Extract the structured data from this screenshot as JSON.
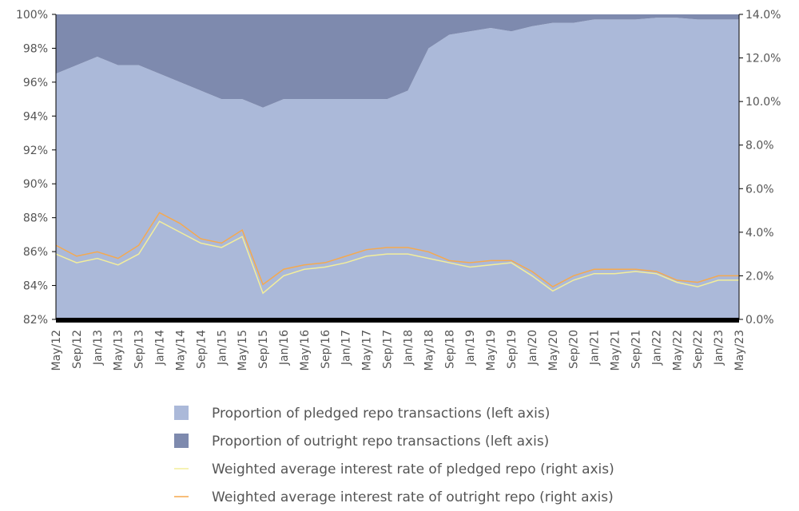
{
  "chart_data": {
    "type": "stacked-area-line",
    "categories": [
      "May/12",
      "Sep/12",
      "Jan/13",
      "May/13",
      "Sep/13",
      "Jan/14",
      "May/14",
      "Sep/14",
      "Jan/15",
      "May/15",
      "Sep/15",
      "Jan/16",
      "May/16",
      "Sep/16",
      "Jan/17",
      "May/17",
      "Sep/17",
      "Jan/18",
      "May/18",
      "Sep/18",
      "Jan/19",
      "May/19",
      "Sep/19",
      "Jan/20",
      "May/20",
      "Sep/20",
      "Jan/21",
      "May/21",
      "Sep/21",
      "Jan/22",
      "May/22",
      "Sep/22",
      "Jan/23",
      "May/23"
    ],
    "series": [
      {
        "name": "Proportion of pledged repo transactions (left axis)",
        "color": "#abb9d9",
        "kind": "area",
        "values": [
          96.5,
          97,
          97.5,
          97,
          97,
          96.5,
          96,
          95.5,
          95,
          95,
          94.5,
          95,
          95,
          95,
          95,
          95,
          95,
          95.5,
          98,
          98.8,
          99,
          99.2,
          99,
          99.3,
          99.5,
          99.5,
          99.7,
          99.7,
          99.7,
          99.8,
          99.8,
          99.7,
          99.7,
          99.7
        ]
      },
      {
        "name": "Proportion of outright repo transactions (left axis)",
        "color": "#7e8aae",
        "kind": "area",
        "values": [
          3.5,
          3,
          2.5,
          3,
          3,
          3.5,
          4,
          4.5,
          5,
          5,
          5.5,
          5,
          5,
          5,
          5,
          5,
          5,
          4.5,
          2,
          1.2,
          1,
          0.8,
          1,
          0.7,
          0.5,
          0.5,
          0.3,
          0.3,
          0.3,
          0.2,
          0.2,
          0.3,
          0.3,
          0.3
        ]
      },
      {
        "name": "Weighted average interest rate of pledged repo (right axis)",
        "color": "#f3ee9c",
        "kind": "line",
        "axis": "y2",
        "values": [
          3.0,
          2.6,
          2.8,
          2.5,
          3.0,
          4.5,
          4.0,
          3.5,
          3.3,
          3.8,
          1.2,
          2.0,
          2.3,
          2.4,
          2.6,
          2.9,
          3.0,
          3.0,
          2.8,
          2.6,
          2.4,
          2.5,
          2.6,
          2.0,
          1.3,
          1.8,
          2.1,
          2.1,
          2.2,
          2.1,
          1.7,
          1.5,
          1.8,
          1.8
        ]
      },
      {
        "name": "Weighted average interest rate of outright repo (right axis)",
        "color": "#f5a94f",
        "kind": "line",
        "axis": "y2",
        "values": [
          3.4,
          2.9,
          3.1,
          2.8,
          3.4,
          4.9,
          4.4,
          3.7,
          3.5,
          4.1,
          1.6,
          2.3,
          2.5,
          2.6,
          2.9,
          3.2,
          3.3,
          3.3,
          3.1,
          2.7,
          2.6,
          2.7,
          2.7,
          2.2,
          1.5,
          2.0,
          2.3,
          2.3,
          2.3,
          2.2,
          1.8,
          1.7,
          2.0,
          2.0
        ]
      }
    ],
    "ylim": [
      82,
      100
    ],
    "yticks": [
      {
        "value": 82,
        "label": "82%"
      },
      {
        "value": 84,
        "label": "84%"
      },
      {
        "value": 86,
        "label": "86%"
      },
      {
        "value": 88,
        "label": "88%"
      },
      {
        "value": 90,
        "label": "90%"
      },
      {
        "value": 92,
        "label": "92%"
      },
      {
        "value": 94,
        "label": "94%"
      },
      {
        "value": 96,
        "label": "96%"
      },
      {
        "value": 98,
        "label": "98%"
      },
      {
        "value": 100,
        "label": "100%"
      }
    ],
    "y2lim": [
      0,
      14
    ],
    "y2ticks": [
      {
        "value": 0,
        "label": "0.0%"
      },
      {
        "value": 2,
        "label": "2.0%"
      },
      {
        "value": 4,
        "label": "4.0%"
      },
      {
        "value": 6,
        "label": "6.0%"
      },
      {
        "value": 8,
        "label": "8.0%"
      },
      {
        "value": 10,
        "label": "10.0%"
      },
      {
        "value": 12,
        "label": "12.0%"
      },
      {
        "value": 14,
        "label": "14.0%"
      }
    ]
  }
}
